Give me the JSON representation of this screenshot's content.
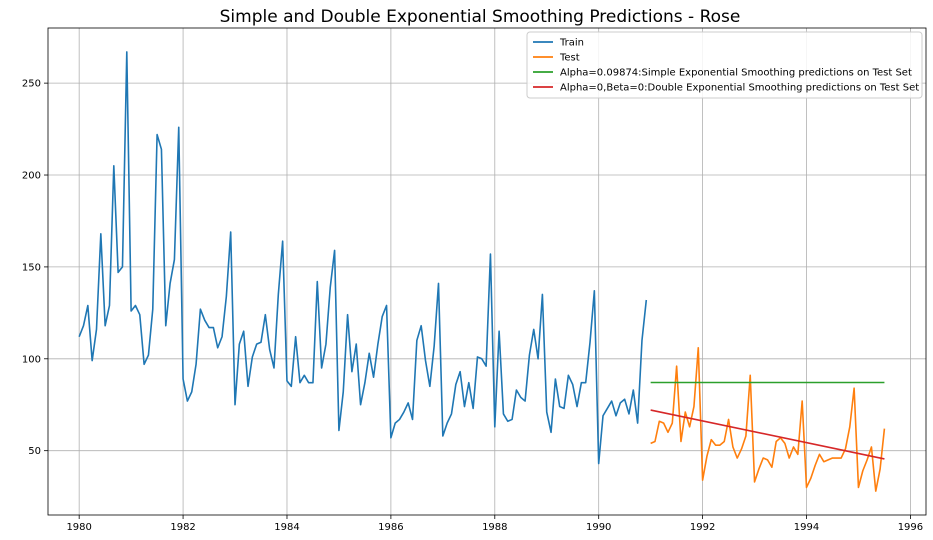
{
  "chart_data": {
    "type": "line",
    "title": "Simple and Double Exponential Smoothing Predictions - Rose",
    "xlabel": "",
    "ylabel": "",
    "xlim": [
      1979.4,
      1996.3
    ],
    "ylim": [
      15,
      280
    ],
    "x_ticks": [
      1980,
      1982,
      1984,
      1986,
      1988,
      1990,
      1992,
      1994,
      1996
    ],
    "x_tick_labels": [
      "1980",
      "1982",
      "1984",
      "1986",
      "1988",
      "1990",
      "1992",
      "1994",
      "1996"
    ],
    "y_ticks": [
      50,
      100,
      150,
      200,
      250
    ],
    "y_tick_labels": [
      "50",
      "100",
      "150",
      "200",
      "250"
    ],
    "grid": true,
    "legend_position": "top-right",
    "x_unit": "year",
    "series": [
      {
        "name": "Train",
        "color": "#1f77b4",
        "start": 1980.0,
        "step": 0.08333,
        "values": [
          112,
          118,
          129,
          99,
          116,
          168,
          118,
          129,
          205,
          147,
          150,
          267,
          126,
          129,
          124,
          97,
          102,
          127,
          222,
          214,
          118,
          141,
          154,
          226,
          89,
          77,
          82,
          97,
          127,
          121,
          117,
          117,
          106,
          112,
          134,
          169,
          75,
          108,
          115,
          85,
          101,
          108,
          109,
          124,
          105,
          95,
          135,
          164,
          88,
          85,
          112,
          87,
          91,
          87,
          87,
          142,
          95,
          108,
          139,
          159,
          61,
          82,
          124,
          93,
          108,
          75,
          87,
          103,
          90,
          108,
          123,
          129,
          57,
          65,
          67,
          71,
          76,
          67,
          110,
          118,
          99,
          85,
          107,
          141,
          58,
          65,
          70,
          86,
          93,
          74,
          87,
          73,
          101,
          100,
          96,
          157,
          63,
          115,
          70,
          66,
          67,
          83,
          79,
          77,
          102,
          116,
          100,
          135,
          71,
          60,
          89,
          74,
          73,
          91,
          86,
          74,
          87,
          87,
          109,
          137,
          43,
          69,
          73,
          77,
          69,
          76,
          78,
          70,
          83,
          65,
          110,
          132
        ]
      },
      {
        "name": "Test",
        "color": "#ff7f0e",
        "start": 1991.0,
        "step": 0.08333,
        "values": [
          54,
          55,
          66,
          65,
          60,
          65,
          96,
          55,
          71,
          63,
          74,
          106,
          34,
          47,
          56,
          53,
          53,
          55,
          67,
          52,
          46,
          51,
          58,
          91,
          33,
          40,
          46,
          45,
          41,
          55,
          57,
          54,
          46,
          52,
          48,
          77,
          30,
          35,
          42,
          48,
          44,
          45,
          46,
          46,
          46,
          51,
          63,
          84,
          30,
          39,
          45,
          52,
          28,
          40,
          62
        ]
      },
      {
        "name": "Alpha=0.09874:Simple Exponential Smoothing predictions on Test Set",
        "color": "#2ca02c",
        "points": [
          [
            1991.0,
            87.1
          ],
          [
            1995.5,
            87.1
          ]
        ]
      },
      {
        "name": "Alpha=0,Beta=0:Double Exponential Smoothing predictions on Test Set",
        "color": "#d62728",
        "points": [
          [
            1991.0,
            72.1
          ],
          [
            1995.5,
            45.5
          ]
        ]
      }
    ]
  }
}
